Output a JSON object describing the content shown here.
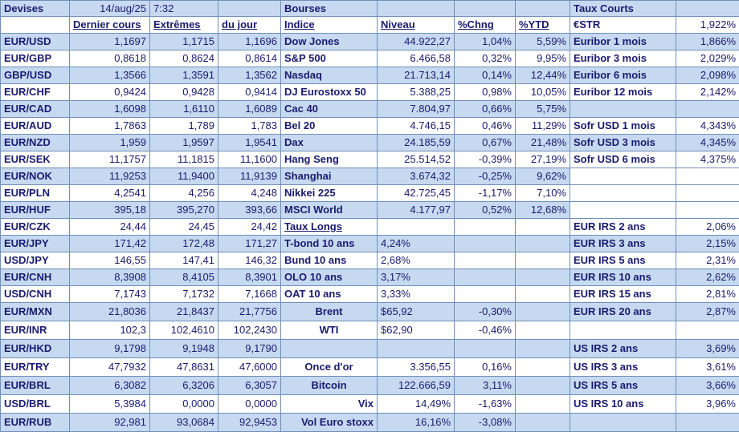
{
  "header": {
    "devises": "Devises",
    "date": "14/aug/25",
    "time": "7:32",
    "bourses": "Bourses",
    "taux_courts": "Taux Courts",
    "dernier": "Dernier cours",
    "extremes": "Extrêmes",
    "du_jour": "du jour",
    "indice": "Indice",
    "niveau": "Niveau",
    "chng": "%Chng",
    "ytd": "%YTD",
    "estr_label": "€STR",
    "estr_value": "1,922%"
  },
  "rows": [
    {
      "fx": "EUR/USD",
      "last": "1,1697",
      "high": "1,1715",
      "low": "1,1696",
      "idx": "Dow Jones",
      "lvl": "44.922,27",
      "chg": "1,04%",
      "ytd": "5,59%",
      "rate": "Euribor 1 mois",
      "rval": "1,866%"
    },
    {
      "fx": "EUR/GBP",
      "last": "0,8618",
      "high": "0,8624",
      "low": "0,8614",
      "idx": "S&P 500",
      "lvl": "6.466,58",
      "chg": "0,32%",
      "ytd": "9,95%",
      "rate": "Euribor 3 mois",
      "rval": "2,029%"
    },
    {
      "fx": "GBP/USD",
      "last": "1,3566",
      "high": "1,3591",
      "low": "1,3562",
      "idx": "Nasdaq",
      "lvl": "21.713,14",
      "chg": "0,14%",
      "ytd": "12,44%",
      "rate": "Euribor 6 mois",
      "rval": "2,098%"
    },
    {
      "fx": "EUR/CHF",
      "last": "0,9424",
      "high": "0,9428",
      "low": "0,9414",
      "idx": "DJ Eurostoxx 50",
      "lvl": "5.388,25",
      "chg": "0,98%",
      "ytd": "10,05%",
      "rate": "Euribor 12 mois",
      "rval": "2,142%"
    },
    {
      "fx": "EUR/CAD",
      "last": "1,6098",
      "high": "1,6110",
      "low": "1,6089",
      "idx": "Cac 40",
      "lvl": "7.804,97",
      "chg": "0,66%",
      "ytd": "5,75%",
      "rate": "",
      "rval": ""
    },
    {
      "fx": "EUR/AUD",
      "last": "1,7863",
      "high": "1,789",
      "low": "1,783",
      "idx": "Bel 20",
      "lvl": "4.746,15",
      "chg": "0,46%",
      "ytd": "11,29%",
      "rate": "Sofr USD 1 mois",
      "rval": "4,343%"
    },
    {
      "fx": "EUR/NZD",
      "last": "1,959",
      "high": "1,9597",
      "low": "1,9541",
      "idx": "Dax",
      "lvl": "24.185,59",
      "chg": "0,67%",
      "ytd": "21,48%",
      "rate": "Sofr USD 3 mois",
      "rval": "4,345%"
    },
    {
      "fx": "EUR/SEK",
      "last": "11,1757",
      "high": "11,1815",
      "low": "11,1600",
      "idx": "Hang Seng",
      "lvl": "25.514,52",
      "chg": "-0,39%",
      "ytd": "27,19%",
      "rate": "Sofr USD 6 mois",
      "rval": "4,375%"
    },
    {
      "fx": "EUR/NOK",
      "last": "11,9253",
      "high": "11,9400",
      "low": "11,9139",
      "idx": "Shanghai",
      "lvl": "3.674,32",
      "chg": "-0,25%",
      "ytd": "9,62%",
      "rate": "",
      "rval": ""
    },
    {
      "fx": "EUR/PLN",
      "last": "4,2541",
      "high": "4,256",
      "low": "4,248",
      "idx": "Nikkei 225",
      "lvl": "42.725,45",
      "chg": "-1,17%",
      "ytd": "7,10%",
      "rate": "",
      "rval": ""
    },
    {
      "fx": "EUR/HUF",
      "last": "395,18",
      "high": "395,270",
      "low": "393,66",
      "idx": "MSCI World",
      "lvl": "4.177,97",
      "chg": "0,52%",
      "ytd": "12,68%",
      "rate": "",
      "rval": ""
    },
    {
      "fx": "EUR/CZK",
      "last": "24,44",
      "high": "24,45",
      "low": "24,42",
      "idx": "Taux Longs",
      "lvl": "",
      "chg": "",
      "ytd": "",
      "rate": "EUR IRS 2 ans",
      "rval": "2,06%"
    },
    {
      "fx": "EUR/JPY",
      "last": "171,42",
      "high": "172,48",
      "low": "171,27",
      "idx": "T-bond 10 ans",
      "lvl": "4,24%",
      "chg": "",
      "ytd": "",
      "rate": "EUR IRS 3 ans",
      "rval": "2,15%"
    },
    {
      "fx": "USD/JPY",
      "last": "146,55",
      "high": "147,41",
      "low": "146,32",
      "idx": "Bund 10 ans",
      "lvl": "2,68%",
      "chg": "",
      "ytd": "",
      "rate": "EUR IRS 5 ans",
      "rval": "2,31%"
    },
    {
      "fx": "EUR/CNH",
      "last": "8,3908",
      "high": "8,4105",
      "low": "8,3901",
      "idx": "OLO 10 ans",
      "lvl": "3,17%",
      "chg": "",
      "ytd": "",
      "rate": "EUR IRS 10 ans",
      "rval": "2,62%"
    },
    {
      "fx": "USD/CNH",
      "last": "7,1743",
      "high": "7,1732",
      "low": "7,1668",
      "idx": "OAT 10 ans",
      "lvl": "3,33%",
      "chg": "",
      "ytd": "",
      "rate": "EUR IRS 15 ans",
      "rval": "2,81%"
    },
    {
      "fx": "EUR/MXN",
      "last": "21,8036",
      "high": "21,8437",
      "low": "21,7756",
      "idx": "Brent",
      "lvl": "$65,92",
      "chg": "-0,30%",
      "ytd": "",
      "rate": "EUR IRS 20 ans",
      "rval": "2,87%"
    },
    {
      "fx": "EUR/INR",
      "last": "102,3",
      "high": "102,4610",
      "low": "102,2430",
      "idx": "WTI",
      "lvl": "$62,90",
      "chg": "-0,46%",
      "ytd": "",
      "rate": "",
      "rval": ""
    },
    {
      "fx": "EUR/HKD",
      "last": "9,1798",
      "high": "9,1948",
      "low": "9,1790",
      "idx": "",
      "lvl": "",
      "chg": "",
      "ytd": "",
      "rate": "US IRS 2 ans",
      "rval": "3,69%"
    },
    {
      "fx": "EUR/TRY",
      "last": "47,7932",
      "high": "47,8631",
      "low": "47,6000",
      "idx": "Once d'or",
      "lvl": "3.356,55",
      "chg": "0,16%",
      "ytd": "",
      "rate": "US IRS 3 ans",
      "rval": "3,61%"
    },
    {
      "fx": "EUR/BRL",
      "last": "6,3082",
      "high": "6,3206",
      "low": "6,3057",
      "idx": "Bitcoin",
      "lvl": "122.666,59",
      "chg": "3,11%",
      "ytd": "",
      "rate": "US IRS 5 ans",
      "rval": "3,66%"
    },
    {
      "fx": "USD/BRL",
      "last": "5,3984",
      "high": "0,0000",
      "low": "0,0000",
      "idx": "Vix",
      "lvl": "14,49%",
      "chg": "-1,63%",
      "ytd": "",
      "rate": "US IRS 10 ans",
      "rval": "3,96%"
    },
    {
      "fx": "EUR/RUB",
      "last": "92,981",
      "high": "93,0684",
      "low": "92,9453",
      "idx": "Vol Euro stoxx",
      "lvl": "16,16%",
      "chg": "-3,08%",
      "ytd": "",
      "rate": "",
      "rval": ""
    }
  ],
  "colors": {
    "header_bg": "#c6d9f0",
    "shade_bg": "#c6d9f0",
    "text": "#1a1a6e",
    "grid": "#6f8fb8"
  }
}
